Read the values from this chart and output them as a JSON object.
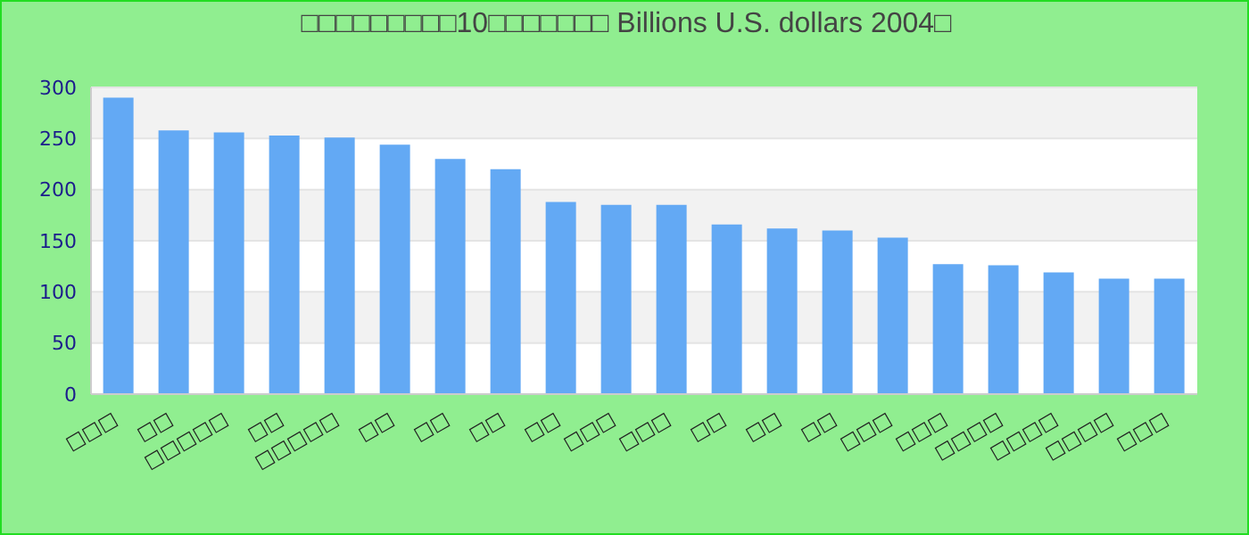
{
  "chart_data": {
    "type": "bar",
    "title": "□□□□□□□□□10□□□□□□□ Billions U.S. dollars 2004□",
    "categories": [
      "□□□",
      "□□",
      "□□□□□",
      "□□",
      "□□□□□",
      "□□",
      "□□",
      "□□",
      "□□",
      "□□□",
      "□□□",
      "□□",
      "□□",
      "□□",
      "□□□",
      "□□□",
      "□□□□",
      "□□□□",
      "□□□□",
      "□□□"
    ],
    "values": [
      290,
      258,
      256,
      253,
      251,
      244,
      230,
      220,
      188,
      185,
      185,
      166,
      162,
      160,
      153,
      127,
      126,
      119,
      113,
      113
    ],
    "color": "#63a9f4",
    "ylim": [
      0,
      300
    ],
    "yticks": [
      0,
      50,
      100,
      150,
      200,
      250,
      300
    ],
    "grid": "y"
  }
}
